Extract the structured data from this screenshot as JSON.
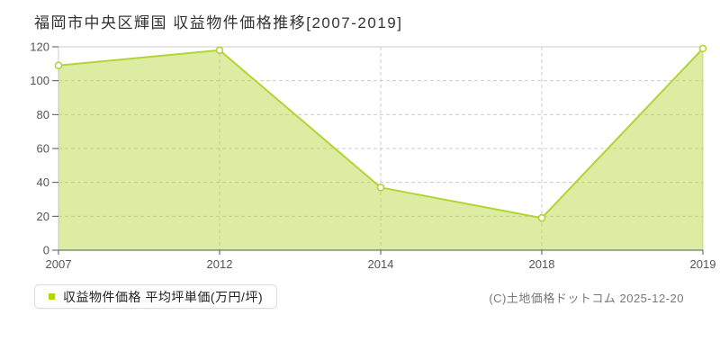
{
  "page": {
    "title": "福岡市中央区輝国 収益物件価格推移[2007-2019]",
    "copyright": "(C)土地価格ドットコム 2025-12-20"
  },
  "legend": {
    "label": "収益物件価格 平均坪単価(万円/坪)",
    "marker_color": "#b0d513"
  },
  "chart_data": {
    "type": "area",
    "title": "福岡市中央区輝国 収益物件価格推移[2007-2019]",
    "categories": [
      "2007",
      "2012",
      "2014",
      "2018",
      "2019"
    ],
    "series": [
      {
        "name": "収益物件価格 平均坪単価(万円/坪)",
        "values": [
          109,
          118,
          37,
          19,
          119
        ]
      }
    ],
    "xlabel": "",
    "ylabel": "",
    "ylim": [
      0,
      120
    ],
    "yticks": [
      0,
      20,
      40,
      60,
      80,
      100,
      120
    ],
    "grid": true,
    "grid_style": "dashed",
    "legend_position": "bottom-left",
    "marker": "circle-white",
    "colors": {
      "line": "#b2d434",
      "fill": "rgba(178,212,52,0.45)",
      "marker_fill": "#ffffff",
      "grid": "#cccccc",
      "plot_border": "#cccccc",
      "axis": "#555555",
      "tick_label": "#555555"
    }
  }
}
